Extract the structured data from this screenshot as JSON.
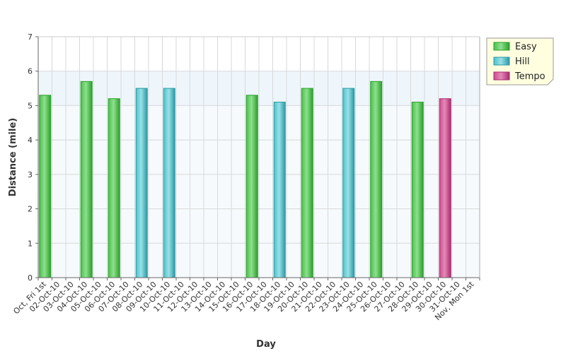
{
  "chart_data": {
    "type": "bar",
    "xlabel": "Day",
    "ylabel": "Distance (mile)",
    "ylim": [
      0,
      7
    ],
    "yticks": [
      "0",
      "1",
      "2",
      "3",
      "4",
      "5",
      "6",
      "7"
    ],
    "grid": true,
    "legend_position": "top-right",
    "categories": [
      "Oct, Fri 1st",
      "02-Oct-10",
      "03-Oct-10",
      "04-Oct-10",
      "05-Oct-10",
      "06-Oct-10",
      "07-Oct-10",
      "08-Oct-10",
      "09-Oct-10",
      "10-Oct-10",
      "11-Oct-10",
      "12-Oct-10",
      "13-Oct-10",
      "14-Oct-10",
      "15-Oct-10",
      "16-Oct-10",
      "17-Oct-10",
      "18-Oct-10",
      "19-Oct-10",
      "20-Oct-10",
      "21-Oct-10",
      "22-Oct-10",
      "23-Oct-10",
      "24-Oct-10",
      "25-Oct-10",
      "26-Oct-10",
      "27-Oct-10",
      "28-Oct-10",
      "29-Oct-10",
      "30-Oct-10",
      "31-Oct-10",
      "Nov, Mon 1st"
    ],
    "series": [
      {
        "name": "Easy",
        "color": "#4cc04c",
        "color_light": "#8ee08e",
        "color_dark": "#2aa02a",
        "values": [
          5.3,
          null,
          null,
          5.7,
          null,
          5.2,
          null,
          null,
          null,
          null,
          null,
          null,
          null,
          null,
          null,
          5.3,
          null,
          null,
          null,
          5.5,
          null,
          null,
          null,
          null,
          5.7,
          null,
          null,
          5.1,
          null,
          null,
          null,
          null
        ]
      },
      {
        "name": "Hill",
        "color": "#4cc2cc",
        "color_light": "#9ae0e6",
        "color_dark": "#2a9aa6",
        "values": [
          null,
          null,
          null,
          null,
          null,
          null,
          null,
          5.5,
          null,
          5.5,
          null,
          null,
          null,
          null,
          null,
          null,
          null,
          5.1,
          null,
          null,
          null,
          null,
          5.5,
          null,
          null,
          null,
          null,
          null,
          null,
          null,
          null,
          null
        ]
      },
      {
        "name": "Tempo",
        "color": "#cc4c90",
        "color_light": "#e68ab8",
        "color_dark": "#a82a6e",
        "values": [
          null,
          null,
          null,
          null,
          null,
          null,
          null,
          null,
          null,
          null,
          null,
          null,
          null,
          null,
          null,
          null,
          null,
          null,
          null,
          null,
          null,
          null,
          null,
          null,
          null,
          null,
          null,
          null,
          null,
          5.2,
          null,
          null
        ]
      }
    ],
    "colors": {
      "plot_band": "#eef6fc",
      "grid": "#d8d8d8",
      "axis": "#666666",
      "legend_bg": "#ffffe0",
      "legend_border": "#999999"
    }
  }
}
